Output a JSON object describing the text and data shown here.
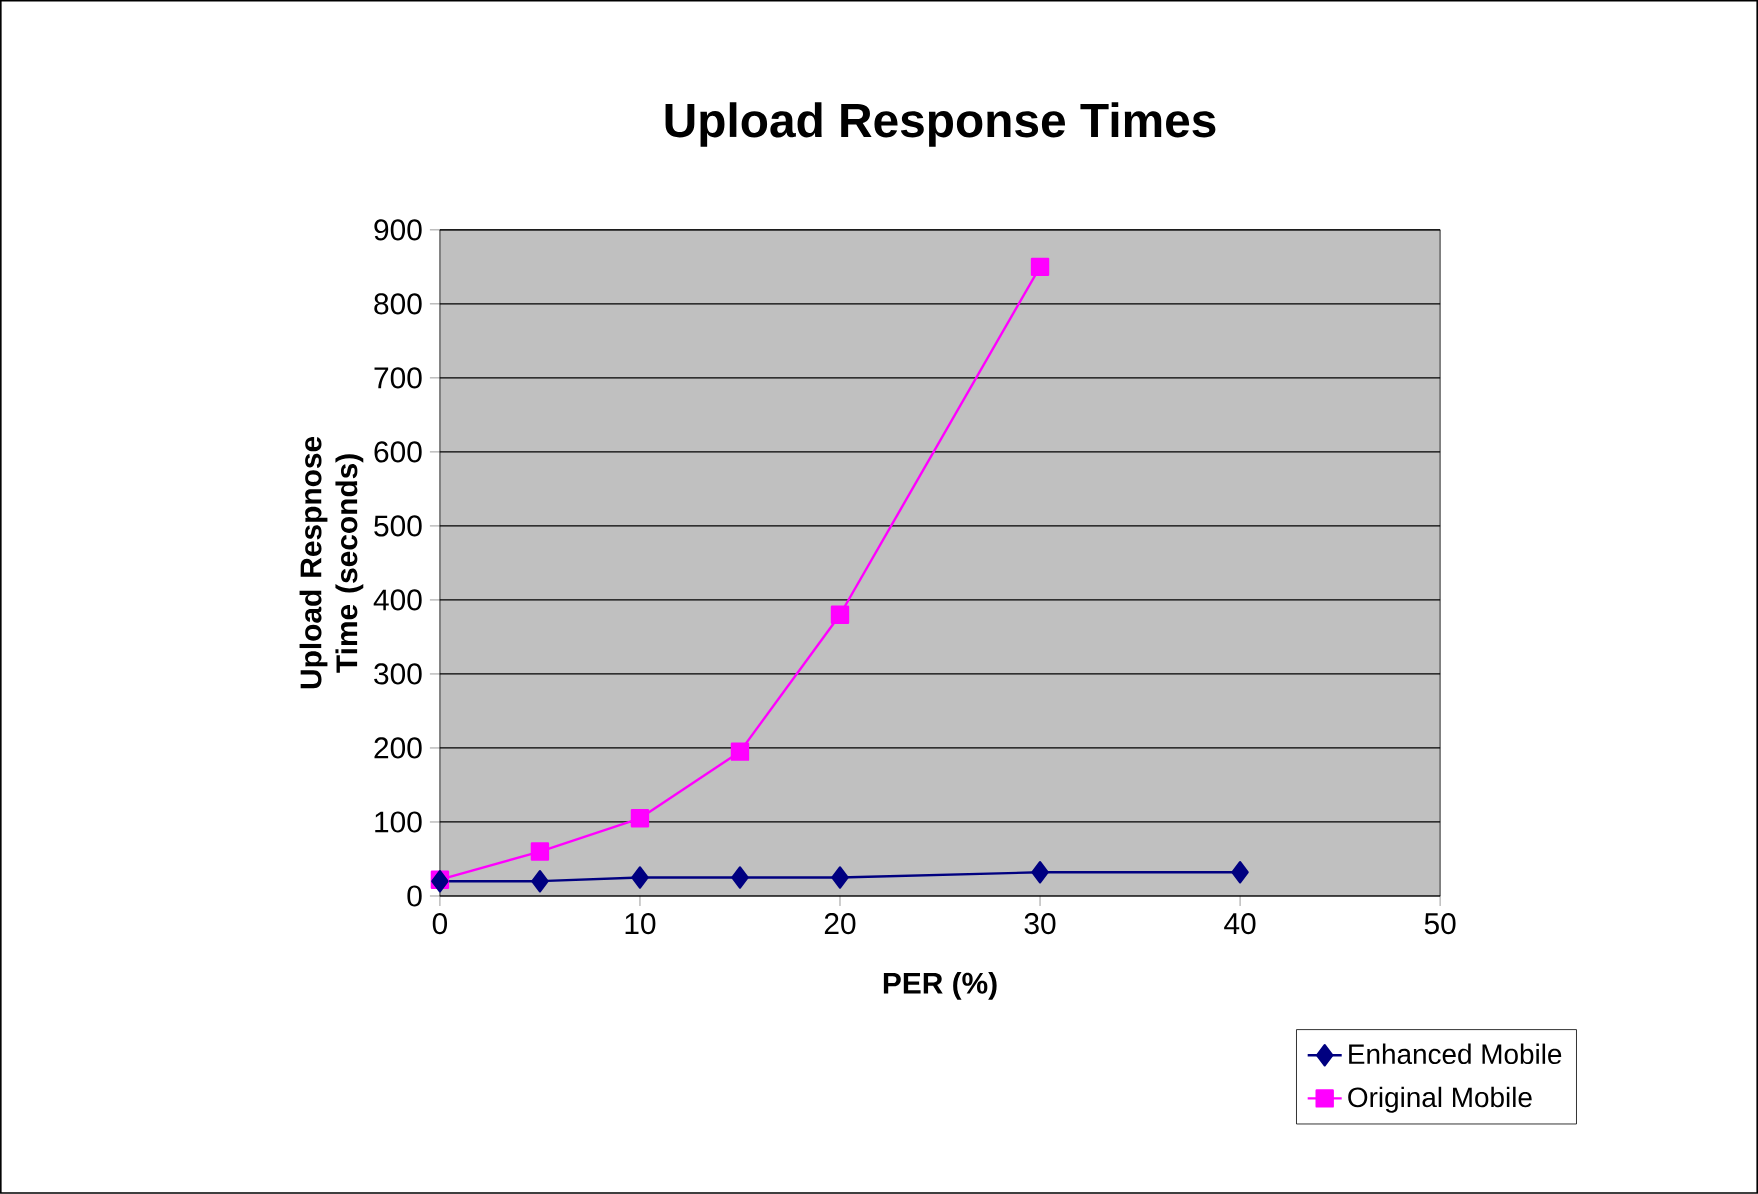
{
  "chart_data": {
    "type": "line",
    "title": "Upload Response Times",
    "xlabel": "PER (%)",
    "ylabel": "Upload Respnose Time (seconds)",
    "xlim": [
      0,
      50
    ],
    "xticks": [
      0,
      10,
      20,
      30,
      40,
      50
    ],
    "ylim": [
      0,
      900
    ],
    "yticks": [
      0,
      100,
      200,
      300,
      400,
      500,
      600,
      700,
      800,
      900
    ],
    "grid": "y",
    "legend": "bottom right",
    "series": [
      {
        "name": "Enhanced Mobile",
        "color": "#000080",
        "marker": "diamond",
        "x": [
          0,
          5,
          10,
          15,
          20,
          30,
          40
        ],
        "values": [
          20,
          20,
          25,
          25,
          25,
          32,
          32
        ]
      },
      {
        "name": "Original Mobile",
        "color": "#ff00ff",
        "marker": "square",
        "x": [
          0,
          5,
          10,
          15,
          20,
          30
        ],
        "values": [
          22,
          60,
          105,
          195,
          380,
          850
        ]
      }
    ]
  }
}
